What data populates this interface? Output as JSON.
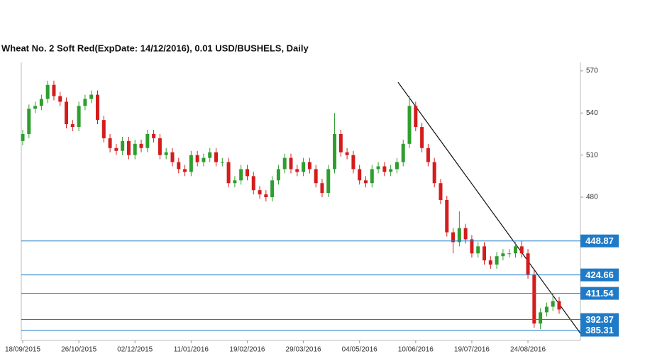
{
  "chart_data": {
    "type": "candlestick",
    "title": "Wheat  No. 2 Soft Red(ExpDate: 14/12/2016), 0.01 USD/BUSHELS, Daily",
    "categories": [
      "18/09/2015",
      null,
      null,
      null,
      null,
      null,
      null,
      null,
      null,
      "26/10/2015",
      null,
      null,
      null,
      null,
      null,
      null,
      null,
      null,
      "02/12/2015",
      null,
      null,
      null,
      null,
      null,
      null,
      null,
      null,
      "11/01/2016",
      null,
      null,
      null,
      null,
      null,
      null,
      null,
      null,
      "19/02/2016",
      null,
      null,
      null,
      null,
      null,
      null,
      null,
      null,
      "29/03/2016",
      null,
      null,
      null,
      null,
      null,
      null,
      null,
      null,
      "04/05/2016",
      null,
      null,
      null,
      null,
      null,
      null,
      null,
      null,
      "10/06/2016",
      null,
      null,
      null,
      null,
      null,
      null,
      null,
      null,
      "19/07/2016",
      null,
      null,
      null,
      null,
      null,
      null,
      null,
      null,
      "24/08/2016",
      null,
      null,
      null,
      null,
      null
    ],
    "open": [
      520,
      525,
      543,
      545,
      550,
      560,
      552,
      548,
      532,
      530,
      545,
      550,
      553,
      535,
      522,
      515,
      513,
      520,
      510,
      518,
      515,
      525,
      522,
      510,
      512,
      505,
      500,
      498,
      510,
      505,
      508,
      512,
      505,
      505,
      490,
      492,
      500,
      495,
      485,
      482,
      480,
      492,
      500,
      508,
      500,
      498,
      505,
      500,
      490,
      483,
      500,
      525,
      512,
      510,
      500,
      492,
      490,
      500,
      502,
      498,
      500,
      505,
      518,
      545,
      530,
      515,
      505,
      490,
      478,
      455,
      448,
      458,
      450,
      440,
      445,
      435,
      432,
      438,
      440,
      440,
      445,
      440,
      425,
      390,
      398,
      402,
      406
    ],
    "high": [
      528,
      546,
      548,
      553,
      563,
      563,
      555,
      551,
      535,
      548,
      553,
      556,
      556,
      538,
      525,
      518,
      523,
      523,
      521,
      521,
      528,
      528,
      525,
      515,
      515,
      508,
      503,
      513,
      513,
      511,
      515,
      515,
      508,
      508,
      495,
      503,
      503,
      498,
      488,
      485,
      495,
      503,
      511,
      511,
      503,
      508,
      508,
      503,
      493,
      503,
      540,
      528,
      515,
      513,
      503,
      495,
      503,
      505,
      505,
      503,
      508,
      521,
      552,
      548,
      533,
      518,
      508,
      493,
      481,
      458,
      470,
      461,
      453,
      448,
      448,
      438,
      441,
      443,
      443,
      448,
      449,
      443,
      428,
      401,
      405,
      411,
      409
    ],
    "low": [
      517,
      522,
      540,
      542,
      547,
      549,
      545,
      529,
      527,
      527,
      542,
      547,
      532,
      519,
      512,
      510,
      510,
      507,
      507,
      512,
      512,
      519,
      507,
      507,
      502,
      497,
      495,
      495,
      502,
      502,
      505,
      502,
      502,
      487,
      487,
      489,
      492,
      482,
      479,
      477,
      477,
      489,
      497,
      497,
      495,
      495,
      497,
      487,
      480,
      480,
      497,
      509,
      507,
      497,
      489,
      487,
      487,
      497,
      495,
      495,
      497,
      502,
      515,
      527,
      512,
      502,
      487,
      475,
      452,
      440,
      445,
      447,
      437,
      437,
      432,
      429,
      429,
      435,
      437,
      437,
      437,
      422,
      387,
      386,
      395,
      399,
      397
    ],
    "close": [
      525,
      543,
      545,
      550,
      560,
      552,
      548,
      532,
      530,
      545,
      550,
      553,
      535,
      522,
      515,
      513,
      520,
      510,
      518,
      515,
      525,
      522,
      510,
      512,
      505,
      500,
      498,
      510,
      505,
      508,
      512,
      505,
      505,
      490,
      492,
      500,
      495,
      485,
      482,
      480,
      492,
      500,
      508,
      500,
      498,
      505,
      500,
      490,
      483,
      500,
      525,
      512,
      510,
      500,
      492,
      490,
      500,
      502,
      498,
      500,
      505,
      518,
      545,
      530,
      515,
      505,
      490,
      478,
      455,
      448,
      458,
      450,
      440,
      445,
      435,
      432,
      438,
      440,
      440,
      445,
      440,
      425,
      390,
      398,
      402,
      406,
      400
    ],
    "up_color": "#2e9e2e",
    "down_color": "#d41c1c",
    "levels": [
      448.87,
      424.66,
      411.54,
      392.87,
      385.31
    ],
    "level_color": "#1f7bc8",
    "ylim": [
      378,
      576
    ],
    "yticks": [
      570,
      540,
      510,
      480
    ]
  }
}
